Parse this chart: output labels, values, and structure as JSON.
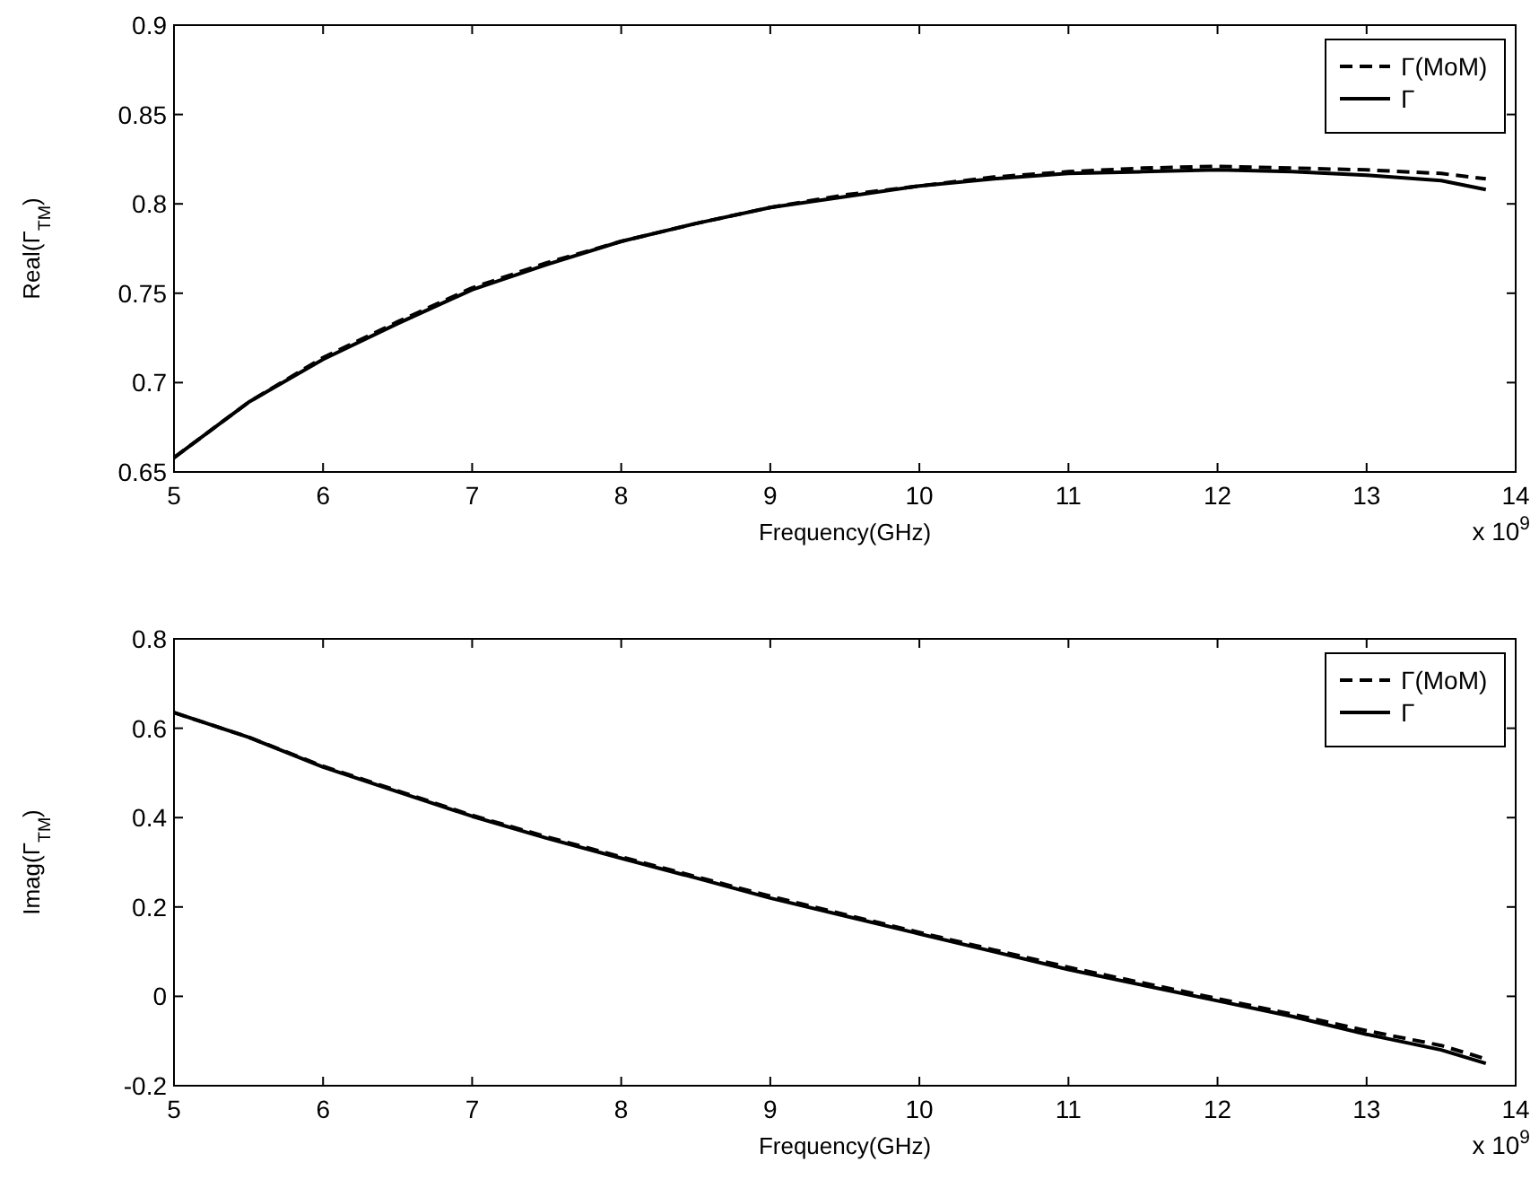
{
  "chart_data": [
    {
      "type": "line",
      "xlabel": "Frequency(GHz)",
      "ylabel": "Real(Γ$_{TM}$)",
      "annotations": [
        "x 10$^{9}$"
      ],
      "xlim": [
        5,
        14
      ],
      "xticks": [
        5,
        6,
        7,
        8,
        9,
        10,
        11,
        12,
        13,
        14
      ],
      "ylim": [
        0.65,
        0.9
      ],
      "yticks": [
        0.65,
        0.7,
        0.75,
        0.8,
        0.85,
        0.9
      ],
      "grid": false,
      "legend": "top right",
      "x": [
        5,
        5.5,
        6,
        6.5,
        7,
        7.5,
        8,
        8.5,
        9,
        9.5,
        10,
        10.5,
        11,
        11.5,
        12,
        12.5,
        13,
        13.5,
        13.8
      ],
      "series": [
        {
          "name": "Γ(MoM)",
          "color": "#000000",
          "line_style": "dashed",
          "values": [
            0.658,
            0.689,
            0.714,
            0.734,
            0.753,
            0.767,
            0.779,
            0.789,
            0.798,
            0.805,
            0.81,
            0.815,
            0.818,
            0.82,
            0.821,
            0.82,
            0.819,
            0.817,
            0.814
          ]
        },
        {
          "name": "Γ",
          "color": "#000000",
          "line_style": "solid",
          "values": [
            0.658,
            0.689,
            0.713,
            0.733,
            0.752,
            0.766,
            0.779,
            0.789,
            0.798,
            0.804,
            0.81,
            0.814,
            0.817,
            0.818,
            0.819,
            0.818,
            0.816,
            0.813,
            0.808
          ]
        }
      ]
    },
    {
      "type": "line",
      "xlabel": "Frequency(GHz)",
      "ylabel": "Imag(Γ$_{TM}$)",
      "annotations": [
        "x 10$^{9}$"
      ],
      "xlim": [
        5,
        14
      ],
      "xticks": [
        5,
        6,
        7,
        8,
        9,
        10,
        11,
        12,
        13,
        14
      ],
      "ylim": [
        -0.2,
        0.8
      ],
      "yticks": [
        -0.2,
        0,
        0.2,
        0.4,
        0.6,
        0.8
      ],
      "grid": false,
      "legend": "top right",
      "x": [
        5,
        5.5,
        6,
        6.5,
        7,
        7.5,
        8,
        8.5,
        9,
        9.5,
        10,
        10.5,
        11,
        11.5,
        12,
        12.5,
        13,
        13.5,
        13.8
      ],
      "series": [
        {
          "name": "Γ(MoM)",
          "color": "#000000",
          "line_style": "dashed",
          "values": [
            0.635,
            0.58,
            0.515,
            0.46,
            0.405,
            0.357,
            0.312,
            0.268,
            0.224,
            0.183,
            0.143,
            0.104,
            0.065,
            0.03,
            -0.005,
            -0.04,
            -0.077,
            -0.11,
            -0.14
          ]
        },
        {
          "name": "Γ",
          "color": "#000000",
          "line_style": "solid",
          "values": [
            0.635,
            0.58,
            0.513,
            0.458,
            0.403,
            0.354,
            0.309,
            0.265,
            0.22,
            0.18,
            0.14,
            0.1,
            0.06,
            0.025,
            -0.01,
            -0.045,
            -0.085,
            -0.12,
            -0.15
          ]
        }
      ]
    }
  ]
}
